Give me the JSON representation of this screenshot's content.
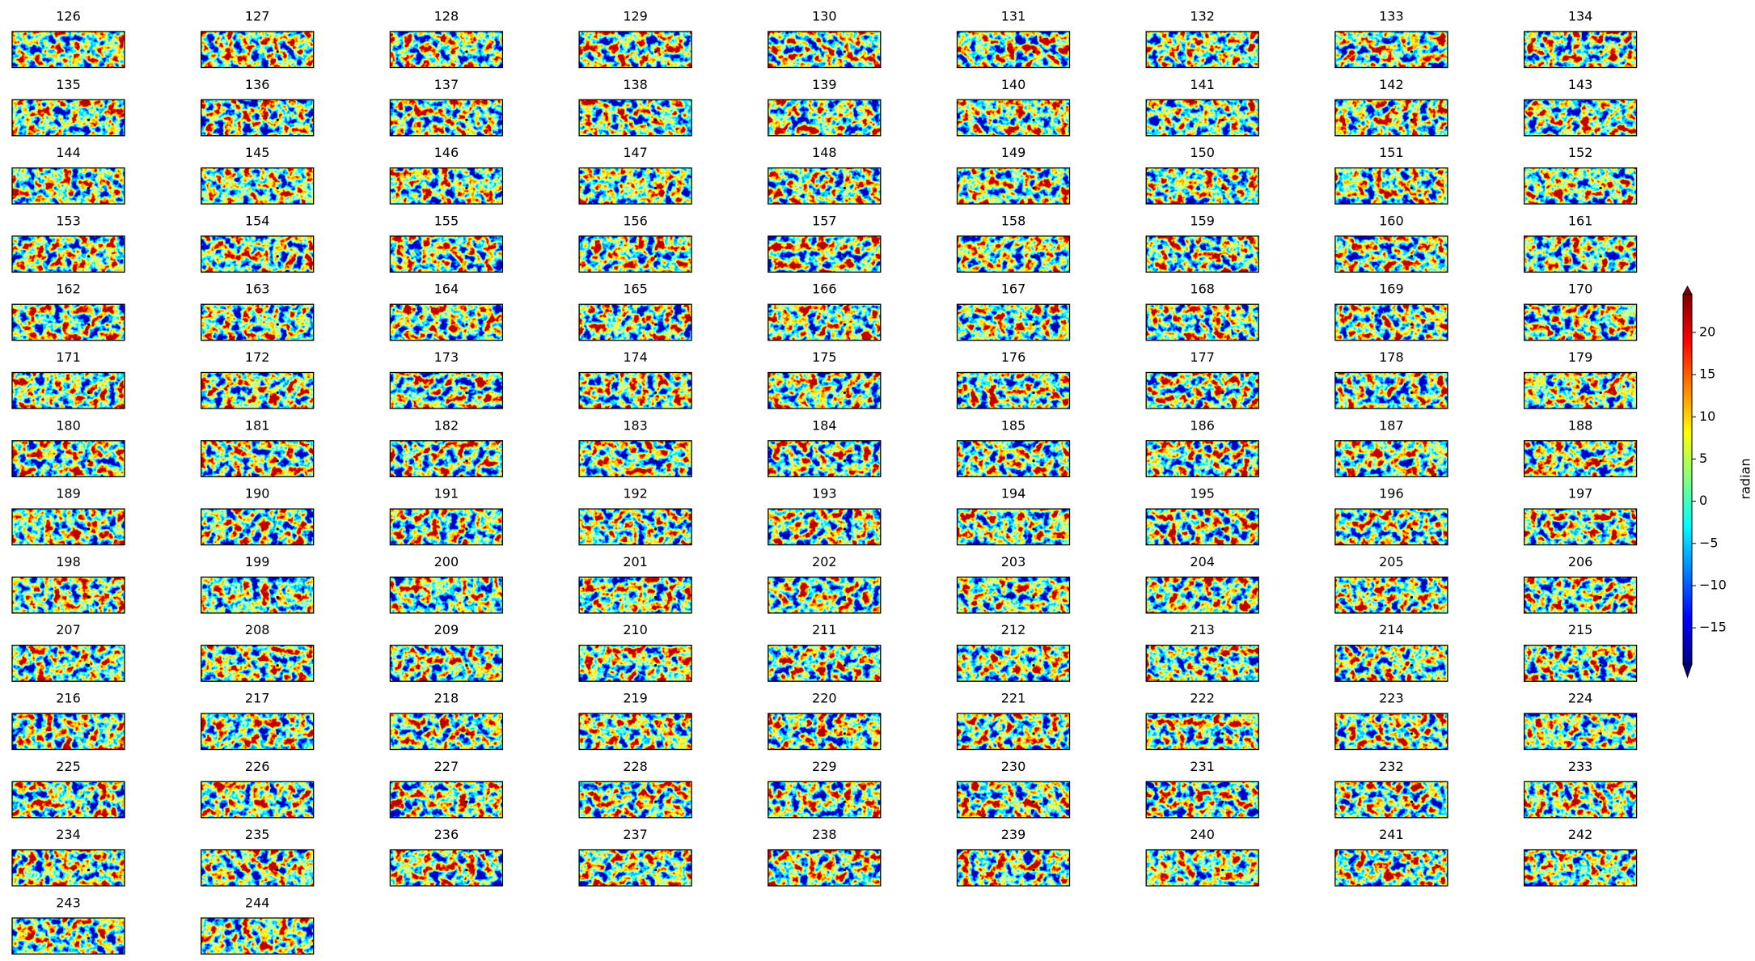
{
  "chart_data": {
    "type": "heatmap-grid",
    "colormap": "jet",
    "columns": 9,
    "titles": [
      "126",
      "127",
      "128",
      "129",
      "130",
      "131",
      "132",
      "133",
      "134",
      "135",
      "136",
      "137",
      "138",
      "139",
      "140",
      "141",
      "142",
      "143",
      "144",
      "145",
      "146",
      "147",
      "148",
      "149",
      "150",
      "151",
      "152",
      "153",
      "154",
      "155",
      "156",
      "157",
      "158",
      "159",
      "160",
      "161",
      "162",
      "163",
      "164",
      "165",
      "166",
      "167",
      "168",
      "169",
      "170",
      "171",
      "172",
      "173",
      "174",
      "175",
      "176",
      "177",
      "178",
      "179",
      "180",
      "181",
      "182",
      "183",
      "184",
      "185",
      "186",
      "187",
      "188",
      "189",
      "190",
      "191",
      "192",
      "193",
      "194",
      "195",
      "196",
      "197",
      "198",
      "199",
      "200",
      "201",
      "202",
      "203",
      "204",
      "205",
      "206",
      "207",
      "208",
      "209",
      "210",
      "211",
      "212",
      "213",
      "214",
      "215",
      "216",
      "217",
      "218",
      "219",
      "220",
      "221",
      "222",
      "223",
      "224",
      "225",
      "226",
      "227",
      "228",
      "229",
      "230",
      "231",
      "232",
      "233",
      "234",
      "235",
      "236",
      "237",
      "238",
      "239",
      "240",
      "241",
      "242",
      "243",
      "244"
    ],
    "colorbar": {
      "label": "radian",
      "lim": [
        -19.3,
        24.5
      ],
      "ticks": [
        {
          "value": -15,
          "label": "−15"
        },
        {
          "value": -10,
          "label": "−10"
        },
        {
          "value": -5,
          "label": "−5"
        },
        0,
        5,
        10,
        15,
        20
      ]
    }
  }
}
